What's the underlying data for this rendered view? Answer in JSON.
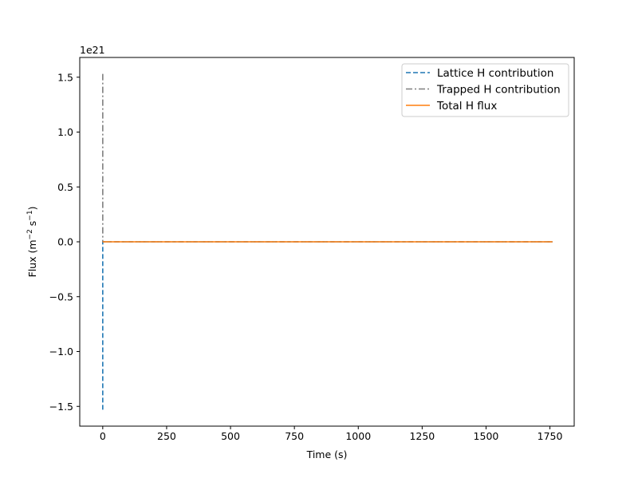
{
  "chart_data": {
    "type": "line",
    "title": "",
    "xlabel": "Time (s)",
    "ylabel": {
      "base": "Flux (m",
      "sup1": "−2",
      "mid": " s",
      "sup2": "−1",
      "end": ")"
    },
    "y_offset_label": "1e21",
    "xlim": [
      -90,
      1845
    ],
    "ylim": [
      -1.68,
      1.68
    ],
    "x_ticks": [
      0,
      250,
      500,
      750,
      1000,
      1250,
      1500,
      1750
    ],
    "x_tick_labels": [
      "0",
      "250",
      "500",
      "750",
      "1000",
      "1250",
      "1500",
      "1750"
    ],
    "y_ticks": [
      1.5,
      1.0,
      0.5,
      0.0,
      -0.5,
      -1.0,
      -1.5
    ],
    "y_tick_labels": [
      "1.5",
      "1.0",
      "0.5",
      "0.0",
      "−0.5",
      "−1.0",
      "−1.5"
    ],
    "grid": false,
    "legend_position": "upper-right",
    "series": [
      {
        "name": "Lattice H contribution",
        "color": "#1f77b4",
        "style": "dashed",
        "x": [
          0,
          0,
          1,
          5,
          50,
          200,
          500,
          1000,
          1500,
          1760
        ],
        "y": [
          -1.53,
          0,
          0,
          0,
          0,
          0,
          0,
          0,
          0,
          0
        ]
      },
      {
        "name": "Trapped H contribution",
        "color": "#7f7f7f",
        "style": "dashdot",
        "x": [
          0,
          0,
          1,
          5,
          50,
          200,
          500,
          1000,
          1500,
          1760
        ],
        "y": [
          1.53,
          0,
          0,
          0,
          0,
          0,
          0,
          0,
          0,
          0
        ]
      },
      {
        "name": "Total H flux",
        "color": "#ff7f0e",
        "style": "solid",
        "x": [
          0,
          1,
          5,
          50,
          200,
          500,
          1000,
          1500,
          1760
        ],
        "y": [
          0,
          0,
          0,
          0,
          0,
          0,
          0,
          0,
          0
        ]
      }
    ]
  }
}
